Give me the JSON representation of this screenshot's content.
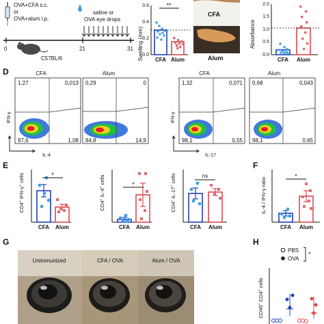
{
  "colors": {
    "cfa": "#1f3fbf",
    "cfa_point": "#3fa0e0",
    "alum": "#e0474c",
    "alum_point": "#e06a70",
    "black": "#111111"
  },
  "panel_letters": [
    "D",
    "E",
    "F",
    "G",
    "H"
  ],
  "timeline": {
    "line1": "OVA+CFA s.c.",
    "line2": "or",
    "line3": "OVA+alum i.p.",
    "drops": "saline or",
    "drops2": "OVA eye drops",
    "day0": "0",
    "day21": "21",
    "day31": "31",
    "strain": "C57BL/6"
  },
  "swelling_chart": {
    "ylabel": "Swelling (mm)",
    "yticks": [
      "0.0",
      "0.2",
      "0.4",
      "0.6"
    ],
    "sig": "**",
    "categories": [
      "CFA",
      "Alum"
    ]
  },
  "photo_labels": {
    "cfa": "CFA",
    "alum": "Alum"
  },
  "absorbance_chart": {
    "ylabel": "Absorbance",
    "yticks": [
      "0.0",
      "0.5",
      "1.0",
      "1.5",
      "2.0"
    ],
    "categories": [
      "CFA",
      "Alum"
    ]
  },
  "flow": {
    "col_titles": [
      "CFA",
      "Alum",
      "CFA",
      "Alum"
    ],
    "ylabel_ifng": "IFN-γ",
    "xlabel_il4": "IL-4",
    "xlabel_il17": "IL-17",
    "plots": [
      {
        "tl": "1,27",
        "tr": "0,013",
        "bl": "97,6",
        "br": "1,08"
      },
      {
        "tl": "0,29",
        "tr": "0",
        "bl": "84,8",
        "br": "14,9"
      },
      {
        "tl": "1,32",
        "tr": "0,071",
        "bl": "98,1",
        "br": "0,55"
      },
      {
        "tl": "0,68",
        "tr": "0,043",
        "bl": "98,1",
        "br": "0,65"
      }
    ]
  },
  "e_charts": [
    {
      "ylabel_pre": "CD4",
      "ylabel_mid": "IFN-γ",
      "ylabel_post": "cells",
      "sig": "*",
      "categories": [
        "CFA",
        "Alum"
      ]
    },
    {
      "ylabel_pre": "CD4",
      "ylabel_mid": "IL-4",
      "ylabel_post": "cells",
      "sig": "*",
      "categories": [
        "CFA",
        "Alum"
      ]
    },
    {
      "ylabel_pre": "CD4",
      "ylabel_mid": "IL-17",
      "ylabel_post": "cells",
      "sig": "ns",
      "categories": [
        "CFA",
        "Alum"
      ]
    }
  ],
  "f_chart": {
    "ylabel": "IL-4 / IFN-γ ratio",
    "sig": "*",
    "categories": [
      "CFA",
      "Alum"
    ]
  },
  "g_labels": [
    "Unimmunized",
    "CFA / OVA",
    "Alum / OVA"
  ],
  "h_chart": {
    "ylabel": "CD45",
    "ylabel2": "CD4",
    "ylabel3": "cells",
    "legend_pbs": "PBS",
    "legend_ova": "OVA",
    "sig": "*"
  },
  "chart_data": [
    {
      "type": "bar",
      "panel": "swelling",
      "categories": [
        "CFA",
        "Alum"
      ],
      "values": [
        0.31,
        0.16
      ],
      "errors": [
        0.03,
        0.02
      ],
      "points": [
        [
          0.42,
          0.38,
          0.35,
          0.33,
          0.32,
          0.3,
          0.29,
          0.27,
          0.25,
          0.22
        ],
        [
          0.22,
          0.19,
          0.18,
          0.17,
          0.16,
          0.15,
          0.14,
          0.12,
          0.1
        ]
      ],
      "reference_line": 0.3,
      "ylim": [
        0,
        0.6
      ],
      "ylabel": "Swelling (mm)"
    },
    {
      "type": "bar",
      "panel": "absorbance",
      "categories": [
        "CFA",
        "Alum"
      ],
      "values": [
        0.2,
        1.05
      ],
      "errors": [
        0.06,
        0.25
      ],
      "points": [
        [
          0.45,
          0.3,
          0.22,
          0.18,
          0.15,
          0.12,
          0.1,
          0.08,
          0.05
        ],
        [
          1.95,
          1.75,
          1.55,
          1.3,
          1.15,
          0.9,
          0.65,
          0.45,
          0.25
        ]
      ],
      "reference_line": 1.05,
      "ylim": [
        0,
        2.0
      ],
      "ylabel": "Absorbance"
    },
    {
      "type": "bar",
      "panel": "E-IFNg",
      "categories": [
        "CFA",
        "Alum"
      ],
      "values": [
        1.2,
        0.57
      ],
      "errors": [
        0.22,
        0.1
      ],
      "points": [
        [
          1.7,
          1.4,
          1.1,
          0.85,
          0.6
        ],
        [
          0.85,
          0.65,
          0.55,
          0.45,
          0.4
        ]
      ],
      "ylim": [
        0,
        2.0
      ]
    },
    {
      "type": "bar",
      "panel": "E-IL4",
      "categories": [
        "CFA",
        "Alum"
      ],
      "values": [
        0.8,
        7.8
      ],
      "errors": [
        0.5,
        3.2
      ],
      "points": [
        [
          1.8,
          0.9,
          0.5,
          0.3,
          0.1
        ],
        [
          13.5,
          13.5,
          9.0,
          6.5,
          3.5,
          1.0
        ]
      ],
      "ylim": [
        0,
        15
      ]
    },
    {
      "type": "bar",
      "panel": "E-IL17",
      "categories": [
        "CFA",
        "Alum"
      ],
      "values": [
        0.33,
        0.35
      ],
      "errors": [
        0.06,
        0.04
      ],
      "points": [
        [
          0.45,
          0.38,
          0.25,
          0.22
        ],
        [
          0.42,
          0.38,
          0.33,
          0.28
        ]
      ],
      "ylim": [
        0,
        0.6
      ],
      "sig": "ns"
    },
    {
      "type": "bar",
      "panel": "F",
      "categories": [
        "CFA",
        "Alum"
      ],
      "values": [
        0.2,
        0.6
      ],
      "errors": [
        0.06,
        0.12
      ],
      "points": [
        [
          0.3,
          0.2,
          0.15,
          0.12
        ],
        [
          0.9,
          0.75,
          0.6,
          0.5,
          0.35,
          0.3
        ]
      ],
      "ylim": [
        0,
        1.2
      ]
    },
    {
      "type": "scatter",
      "panel": "H",
      "series": [
        {
          "name": "PBS",
          "values": [
            0.15,
            0.15,
            0.15,
            0.18,
            0.15,
            0.15
          ]
        },
        {
          "name": "OVA",
          "values": [
            0.9,
            0.75,
            0.6,
            0.5,
            0.85,
            0.6
          ]
        }
      ]
    }
  ]
}
